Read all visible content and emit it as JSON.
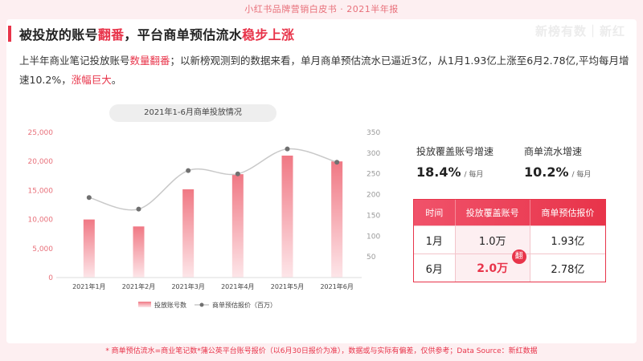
{
  "header": {
    "banner": "小红书品牌营销白皮书 · 2021半年报"
  },
  "watermark": "新榜有数｜新红",
  "title": {
    "part1": "被投放的账号",
    "part2": "翻番",
    "part3": "，平台商单预估流水",
    "part4": "稳步上涨"
  },
  "intro": {
    "s1": "上半年商业笔记投放账号",
    "s2": "数量翻番",
    "s3": "；以新榜观测到的数据来看，单月商单预估流水已逼近3亿，从1月1.93亿上涨至6月2.78亿,平均每月增速10.2%，",
    "s4": "涨幅巨大",
    "s5": "。"
  },
  "stats": [
    {
      "label": "投放覆盖账号增速",
      "value": "18.4%",
      "unit": "/ 每月"
    },
    {
      "label": "商单流水增速",
      "value": "10.2%",
      "unit": "/ 每月"
    }
  ],
  "table": {
    "headers": [
      "时间",
      "投放覆盖账号",
      "商单预估报价"
    ],
    "rows": [
      {
        "month": "1月",
        "accounts": "1.0万",
        "price": "1.93亿",
        "badge": ""
      },
      {
        "month": "6月",
        "accounts": "2.0万",
        "price": "2.78亿",
        "badge": "翻"
      }
    ]
  },
  "chart_data": {
    "type": "bar",
    "title": "2021年1-6月商单投放情况",
    "categories": [
      "2021年1月",
      "2021年2月",
      "2021年3月",
      "2021年4月",
      "2021年5月",
      "2021年6月"
    ],
    "series": [
      {
        "name": "投放账号数",
        "type": "bar",
        "axis": "left",
        "values": [
          10000,
          8800,
          15200,
          17800,
          21000,
          20000
        ]
      },
      {
        "name": "商单预估报价（百万）",
        "type": "line",
        "axis": "right",
        "values": [
          193,
          165,
          258,
          250,
          310,
          278
        ]
      }
    ],
    "ylim_left": [
      0,
      25000
    ],
    "yticks_left": [
      "0",
      "5,000",
      "10,000",
      "15,000",
      "20,000",
      "25,000"
    ],
    "ylim_right": [
      0,
      350
    ],
    "yticks_right": [
      "50",
      "100",
      "150",
      "200",
      "250",
      "300",
      "350"
    ],
    "colors": {
      "bar_top": "#f07884",
      "bar_bottom": "#fde6e9",
      "line": "#c9c9c9",
      "marker": "#707070",
      "axis_text": "#e8707a"
    },
    "legend": "bottom"
  },
  "footer": "* 商单预估流水=商业笔记数*蒲公英平台账号报价（以6月30日报价为准），数据或与实际有偏差，仅供参考；Data Source：新红数据"
}
